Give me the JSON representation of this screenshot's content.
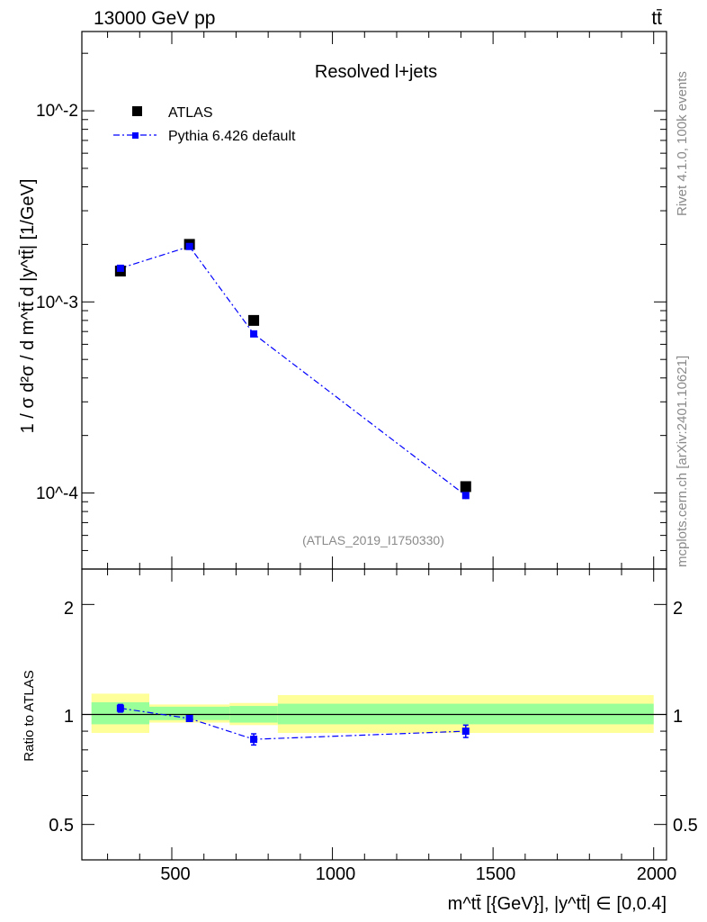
{
  "header": {
    "energy_label": "13000 GeV pp",
    "process_label": "tt̄"
  },
  "side_text": {
    "rivet": "Rivet 4.1.0,  100k events",
    "source": "mcplots.cern.ch [arXiv:2401.10621]"
  },
  "main_plot": {
    "title": "Resolved l+jets",
    "analysis_id": "(ATLAS_2019_I1750330)",
    "ylabel": "1 / σ d²σ / d m^tt̄ d |y^tt̄| [1/GeV]",
    "y_tick_labels": [
      "10^-4",
      "10^-3",
      "10^-2"
    ]
  },
  "ratio_plot": {
    "ylabel": "Ratio to ATLAS",
    "y_tick_labels": [
      "0.5",
      "1",
      "2"
    ]
  },
  "xaxis": {
    "label": "m^tt̄ [{GeV}], |y^tt̄| ∈ [0,0.4]",
    "tick_labels": [
      "500",
      "1000",
      "1500",
      "2000"
    ]
  },
  "legend": {
    "data_label": "ATLAS",
    "mc_label": "Pythia 6.426 default"
  },
  "colors": {
    "data": "#000000",
    "mc": "#0000ff",
    "band_outer": "#ffff99",
    "band_inner": "#99ff99"
  },
  "chart_data": {
    "type": "scatter",
    "title": "Resolved l+jets",
    "xlabel": "m^tt̄ [{GeV}], |y^tt̄| ∈ [0,0.4]",
    "ylabel": "1 / σ d²σ / d m^tt̄ d |y^tt̄| [1/GeV]",
    "xlim": [
      220,
      2040
    ],
    "ylim": [
      4e-05,
      0.026
    ],
    "yscale": "log",
    "legend_position": "top-left",
    "bins": [
      {
        "lo": 250,
        "hi": 430,
        "x": 340,
        "data": 0.00145,
        "mc": 0.0015,
        "mc_err": 4e-05,
        "ratio": 1.04,
        "ratio_err": 0.025,
        "band_inner": [
          0.94,
          1.08
        ],
        "band_outer": [
          0.89,
          1.14
        ]
      },
      {
        "lo": 430,
        "hi": 680,
        "x": 555,
        "data": 0.002,
        "mc": 0.00195,
        "mc_err": 5e-05,
        "ratio": 0.975,
        "ratio_err": 0.012,
        "band_inner": [
          0.965,
          1.05
        ],
        "band_outer": [
          0.95,
          1.065
        ]
      },
      {
        "lo": 680,
        "hi": 830,
        "x": 755,
        "data": 0.0008,
        "mc": 0.00068,
        "mc_err": 2e-05,
        "ratio": 0.855,
        "ratio_err": 0.03,
        "band_inner": [
          0.95,
          1.055
        ],
        "band_outer": [
          0.935,
          1.075
        ]
      },
      {
        "lo": 830,
        "hi": 2000,
        "x": 1415,
        "data": 0.000108,
        "mc": 9.7e-05,
        "mc_err": 4e-06,
        "ratio": 0.9,
        "ratio_err": 0.035,
        "band_inner": [
          0.94,
          1.07
        ],
        "band_outer": [
          0.89,
          1.13
        ]
      }
    ],
    "ratio_ylim": [
      0.4,
      2.5
    ],
    "ratio_scale": "log",
    "series": [
      {
        "name": "ATLAS",
        "marker": "square",
        "values": [
          0.00145,
          0.002,
          0.0008,
          0.000108
        ]
      },
      {
        "name": "Pythia 6.426 default",
        "marker": "square-dashdot",
        "values": [
          0.0015,
          0.00195,
          0.00068,
          9.7e-05
        ]
      }
    ]
  }
}
